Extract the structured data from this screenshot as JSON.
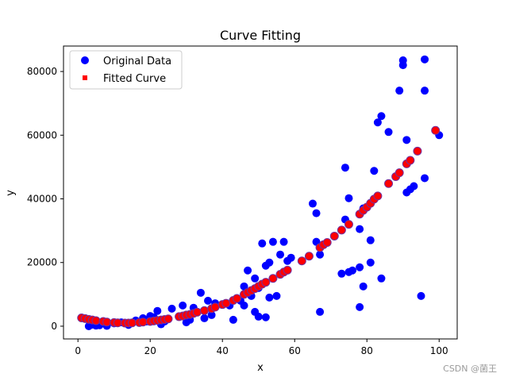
{
  "watermark": "CSDN @菌王",
  "chart_data": {
    "type": "scatter",
    "title": "Curve Fitting",
    "xlabel": "x",
    "ylabel": "y",
    "xlim": [
      -4,
      105
    ],
    "ylim": [
      -4000,
      88000
    ],
    "xticks": [
      0,
      20,
      40,
      60,
      80,
      100
    ],
    "yticks": [
      0,
      20000,
      40000,
      60000,
      80000
    ],
    "grid": false,
    "legend_position": "top-left",
    "series": [
      {
        "name": "Original Data",
        "marker": "circle",
        "color": "#0000ff",
        "points": [
          [
            3,
            0
          ],
          [
            4,
            500
          ],
          [
            5,
            200
          ],
          [
            6,
            300
          ],
          [
            8,
            100
          ],
          [
            10,
            900
          ],
          [
            12,
            1200
          ],
          [
            14,
            400
          ],
          [
            16,
            1800
          ],
          [
            18,
            2500
          ],
          [
            19,
            1500
          ],
          [
            20,
            3200
          ],
          [
            21,
            2800
          ],
          [
            22,
            4800
          ],
          [
            23,
            600
          ],
          [
            24,
            1500
          ],
          [
            26,
            5500
          ],
          [
            29,
            6500
          ],
          [
            30,
            1200
          ],
          [
            31,
            2000
          ],
          [
            32,
            5800
          ],
          [
            34,
            10500
          ],
          [
            35,
            2500
          ],
          [
            36,
            8000
          ],
          [
            37,
            3500
          ],
          [
            38,
            7200
          ],
          [
            40,
            6800
          ],
          [
            42,
            6500
          ],
          [
            43,
            2000
          ],
          [
            45,
            8000
          ],
          [
            46,
            12500
          ],
          [
            46,
            6500
          ],
          [
            47,
            17500
          ],
          [
            48,
            9500
          ],
          [
            49,
            15000
          ],
          [
            49,
            4500
          ],
          [
            50,
            3000
          ],
          [
            50,
            12000
          ],
          [
            51,
            26000
          ],
          [
            52,
            2800
          ],
          [
            52,
            19000
          ],
          [
            53,
            9000
          ],
          [
            53,
            20000
          ],
          [
            54,
            26500
          ],
          [
            55,
            9500
          ],
          [
            56,
            22500
          ],
          [
            57,
            26500
          ],
          [
            58,
            20500
          ],
          [
            59,
            21500
          ],
          [
            65,
            38500
          ],
          [
            66,
            35500
          ],
          [
            66,
            26500
          ],
          [
            67,
            4500
          ],
          [
            67,
            22500
          ],
          [
            73,
            16500
          ],
          [
            74,
            49800
          ],
          [
            74,
            33500
          ],
          [
            75,
            40200
          ],
          [
            75,
            17000
          ],
          [
            76,
            17500
          ],
          [
            78,
            18500
          ],
          [
            78,
            30500
          ],
          [
            78,
            6000
          ],
          [
            79,
            12500
          ],
          [
            79,
            37000
          ],
          [
            81,
            27000
          ],
          [
            81,
            20000
          ],
          [
            82,
            48800
          ],
          [
            83,
            64000
          ],
          [
            84,
            66000
          ],
          [
            84,
            15000
          ],
          [
            86,
            61000
          ],
          [
            89,
            74000
          ],
          [
            90,
            82000
          ],
          [
            90,
            83500
          ],
          [
            91,
            58500
          ],
          [
            91,
            42000
          ],
          [
            92,
            43000
          ],
          [
            93,
            44000
          ],
          [
            95,
            9500
          ],
          [
            96,
            83800
          ],
          [
            96,
            74000
          ],
          [
            96,
            46500
          ],
          [
            100,
            60000
          ]
        ]
      },
      {
        "name": "Fitted Curve",
        "marker": "square",
        "color": "#ff0000",
        "edge_color": "#7030a0",
        "points": [
          [
            1,
            2600
          ],
          [
            2,
            2400
          ],
          [
            3,
            2150
          ],
          [
            4,
            1950
          ],
          [
            5,
            1750
          ],
          [
            7,
            1500
          ],
          [
            8,
            1300
          ],
          [
            10,
            1150
          ],
          [
            11,
            1050
          ],
          [
            13,
            1000
          ],
          [
            14,
            1000
          ],
          [
            15,
            1050
          ],
          [
            17,
            1150
          ],
          [
            18,
            1300
          ],
          [
            20,
            1500
          ],
          [
            21,
            1650
          ],
          [
            22,
            1800
          ],
          [
            23,
            1950
          ],
          [
            24,
            2100
          ],
          [
            25,
            2300
          ],
          [
            28,
            3000
          ],
          [
            29,
            3200
          ],
          [
            30,
            3500
          ],
          [
            31,
            3700
          ],
          [
            32,
            4000
          ],
          [
            33,
            4400
          ],
          [
            35,
            4900
          ],
          [
            37,
            5500
          ],
          [
            38,
            6000
          ],
          [
            40,
            6800
          ],
          [
            41,
            7200
          ],
          [
            43,
            8100
          ],
          [
            44,
            8700
          ],
          [
            46,
            10000
          ],
          [
            47,
            10600
          ],
          [
            48,
            11200
          ],
          [
            49,
            11800
          ],
          [
            50,
            12500
          ],
          [
            51,
            13200
          ],
          [
            52,
            13800
          ],
          [
            54,
            15000
          ],
          [
            56,
            16300
          ],
          [
            57,
            17000
          ],
          [
            58,
            17600
          ],
          [
            62,
            20500
          ],
          [
            64,
            22000
          ],
          [
            67,
            24700
          ],
          [
            68,
            25600
          ],
          [
            69,
            26300
          ],
          [
            71,
            28300
          ],
          [
            73,
            30200
          ],
          [
            75,
            32000
          ],
          [
            78,
            35200
          ],
          [
            79,
            36400
          ],
          [
            80,
            37400
          ],
          [
            81,
            38600
          ],
          [
            82,
            39900
          ],
          [
            83,
            40900
          ],
          [
            86,
            44800
          ],
          [
            88,
            47000
          ],
          [
            89,
            48200
          ],
          [
            91,
            51000
          ],
          [
            92,
            52100
          ],
          [
            94,
            55000
          ],
          [
            99,
            61500
          ]
        ]
      }
    ]
  }
}
